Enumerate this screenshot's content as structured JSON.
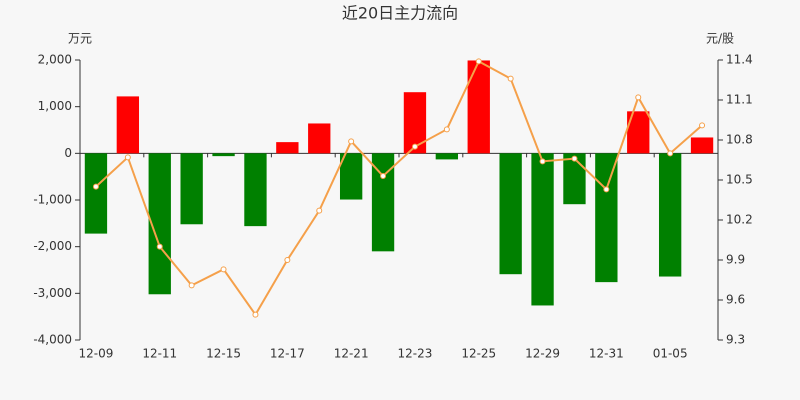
{
  "chart_data": {
    "type": "bar",
    "title": "近20日主力流向",
    "y_label": "万元",
    "y2_label": "元/股",
    "categories": [
      "12-09",
      null,
      "12-11",
      null,
      "12-15",
      null,
      "12-17",
      null,
      "12-21",
      null,
      "12-23",
      null,
      "12-25",
      null,
      "12-29",
      null,
      "12-31",
      null,
      "01-05",
      null
    ],
    "series": [
      {
        "type": "bar",
        "positive_color": "#ff0000",
        "negative_color": "#008000",
        "values": [
          -1720,
          1220,
          -3020,
          -1520,
          -60,
          -1560,
          240,
          640,
          -990,
          -2100,
          1310,
          -130,
          1990,
          -2590,
          -3260,
          -1090,
          -2760,
          900,
          -2640,
          340
        ]
      },
      {
        "type": "line",
        "axis": "y2",
        "color": "#f5a04a",
        "values": [
          10.45,
          10.67,
          10.0,
          9.71,
          9.83,
          9.49,
          9.9,
          10.27,
          10.79,
          10.53,
          10.75,
          10.88,
          11.39,
          11.26,
          10.64,
          10.66,
          10.43,
          11.12,
          10.7,
          10.91
        ]
      }
    ],
    "ylim": [
      -4000,
      2000
    ],
    "yticks": [
      {
        "value": -4000,
        "label": "-4,000"
      },
      {
        "value": -3000,
        "label": "-3,000"
      },
      {
        "value": -2000,
        "label": "-2,000"
      },
      {
        "value": -1000,
        "label": "-1,000"
      },
      0,
      {
        "value": 1000,
        "label": "1,000"
      },
      {
        "value": 2000,
        "label": "2,000"
      }
    ],
    "y2lim": [
      9.3,
      11.4
    ],
    "y2ticks": [
      9.3,
      9.6,
      9.9,
      10.2,
      10.5,
      10.8,
      11.1,
      11.4
    ]
  }
}
